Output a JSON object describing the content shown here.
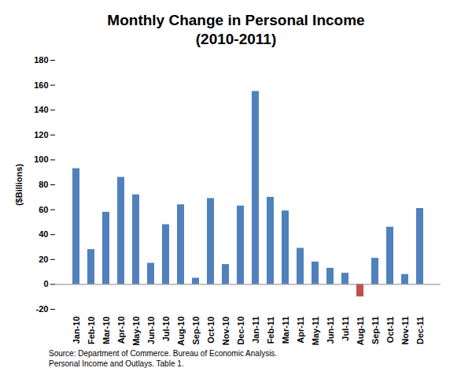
{
  "chart_data": {
    "type": "bar",
    "title": "Monthly Change in Personal Income",
    "subtitle": "(2010-2011)",
    "y_label": "($Billions)",
    "categories": [
      "Jan-10",
      "Feb-10",
      "Mar-10",
      "Apr-10",
      "May-10",
      "Jun-10",
      "Jul-10",
      "Aug-10",
      "Sep-10",
      "Oct-10",
      "Nov-10",
      "Dec-10",
      "Jan-11",
      "Feb-11",
      "Mar-11",
      "Apr-11",
      "May-11",
      "Jun-11",
      "Jul-11",
      "Aug-11",
      "Sep-11",
      "Oct-11",
      "Nov-11",
      "Dec-11"
    ],
    "values": [
      93,
      28,
      58,
      86,
      72,
      17,
      48,
      64,
      5,
      69,
      16,
      63,
      155,
      70,
      59,
      29,
      18,
      13,
      9,
      -10,
      21,
      46,
      8,
      61
    ],
    "colors": [
      "#4f81bd",
      "#4f81bd",
      "#4f81bd",
      "#4f81bd",
      "#4f81bd",
      "#4f81bd",
      "#4f81bd",
      "#4f81bd",
      "#4f81bd",
      "#4f81bd",
      "#4f81bd",
      "#4f81bd",
      "#4f81bd",
      "#4f81bd",
      "#4f81bd",
      "#4f81bd",
      "#4f81bd",
      "#4f81bd",
      "#4f81bd",
      "#c0504d",
      "#4f81bd",
      "#4f81bd",
      "#4f81bd",
      "#4f81bd"
    ],
    "ylim": [
      -20,
      180
    ],
    "yticks": [
      -20,
      0,
      20,
      40,
      60,
      80,
      100,
      120,
      140,
      160,
      180
    ],
    "grid": false,
    "notes": [
      "Source: Department of Commerce. Bureau of Economic Analysis.",
      "Personal Income and Outlays. Table 1."
    ]
  }
}
